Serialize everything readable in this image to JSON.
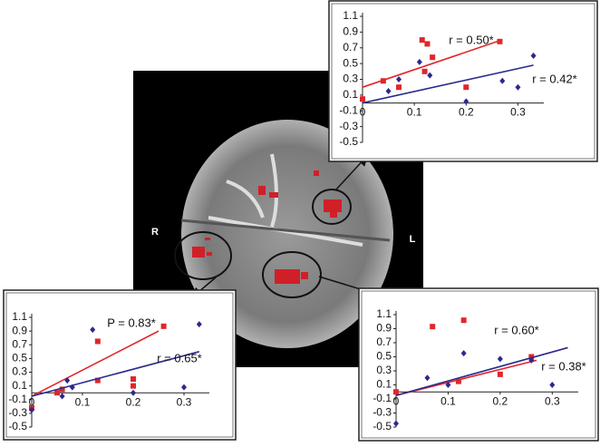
{
  "chart_data": [
    {
      "type": "scatter",
      "xlim": [
        0,
        0.35
      ],
      "ylim": [
        -0.5,
        1.1
      ],
      "xticks": [
        0,
        0.1,
        0.2,
        0.3
      ],
      "yticks": [
        -0.5,
        -0.3,
        -0.1,
        0.1,
        0.3,
        0.5,
        0.7,
        0.9,
        1.1
      ],
      "annotations": [
        "r = 0.50*",
        "r = 0.42*"
      ],
      "series": [
        {
          "color": "#e0262b",
          "marker": "square",
          "x": [
            0.115,
            0.125,
            0.12,
            0.135,
            0.07,
            0.04,
            0.0,
            0.2,
            0.265
          ],
          "values": [
            0.8,
            0.75,
            0.4,
            0.58,
            0.2,
            0.28,
            0.05,
            0.2,
            0.78
          ],
          "fit": {
            "x": [
              0,
              0.26
            ],
            "values": [
              0.2,
              0.78
            ]
          }
        },
        {
          "color": "#2a2a8c",
          "marker": "diamond",
          "x": [
            0.11,
            0.13,
            0.07,
            0.05,
            0.2,
            0.27,
            0.3,
            0.33
          ],
          "values": [
            0.52,
            0.35,
            0.3,
            0.15,
            0.02,
            0.28,
            0.2,
            0.6
          ],
          "fit": {
            "x": [
              0,
              0.33
            ],
            "values": [
              0.0,
              0.48
            ]
          }
        }
      ]
    },
    {
      "type": "scatter",
      "xlim": [
        0,
        0.35
      ],
      "ylim": [
        -0.5,
        1.1
      ],
      "xticks": [
        0,
        0.1,
        0.2,
        0.3
      ],
      "yticks": [
        -0.5,
        -0.3,
        -0.1,
        0.1,
        0.3,
        0.5,
        0.7,
        0.9,
        1.1
      ],
      "annotations": [
        "P = 0.83*",
        "r = 0.65*"
      ],
      "series": [
        {
          "color": "#e0262b",
          "marker": "square",
          "x": [
            0,
            0.06,
            0.13,
            0.13,
            0.2,
            0.2,
            0.26,
            0.05
          ],
          "values": [
            -0.22,
            0.05,
            0.75,
            0.18,
            0.2,
            0.1,
            0.97,
            0.0
          ],
          "fit": {
            "x": [
              0,
              0.25
            ],
            "values": [
              -0.05,
              0.9
            ]
          }
        },
        {
          "color": "#2a2a8c",
          "marker": "diamond",
          "x": [
            0,
            0.07,
            0.12,
            0.08,
            0.2,
            0.3,
            0.33,
            0.06
          ],
          "values": [
            -0.25,
            0.18,
            0.92,
            0.08,
            0.0,
            0.08,
            1.0,
            -0.05
          ],
          "fit": {
            "x": [
              0,
              0.33
            ],
            "values": [
              -0.05,
              0.6
            ]
          }
        }
      ]
    },
    {
      "type": "scatter",
      "xlim": [
        0,
        0.35
      ],
      "ylim": [
        -0.5,
        1.1
      ],
      "xticks": [
        0,
        0.1,
        0.2,
        0.3
      ],
      "yticks": [
        -0.5,
        -0.3,
        -0.1,
        0.1,
        0.3,
        0.5,
        0.7,
        0.9,
        1.1
      ],
      "annotations": [
        "r = 0.60*",
        "r = 0.38*"
      ],
      "series": [
        {
          "color": "#e0262b",
          "marker": "square",
          "x": [
            0.07,
            0.13,
            0.2,
            0.26,
            0.12,
            0.0
          ],
          "values": [
            0.93,
            1.02,
            0.25,
            0.5,
            0.15,
            0.0
          ],
          "fit": {
            "x": [
              0,
              0.27
            ],
            "values": [
              -0.05,
              0.45
            ]
          }
        },
        {
          "color": "#2a2a8c",
          "marker": "diamond",
          "x": [
            0.0,
            0.06,
            0.13,
            0.2,
            0.26,
            0.3,
            0.1
          ],
          "values": [
            -0.45,
            0.2,
            0.55,
            0.47,
            0.45,
            0.1,
            0.1
          ],
          "fit": {
            "x": [
              0,
              0.33
            ],
            "values": [
              -0.05,
              0.63
            ]
          }
        }
      ]
    }
  ],
  "brain_labels": [
    "R",
    "L"
  ]
}
